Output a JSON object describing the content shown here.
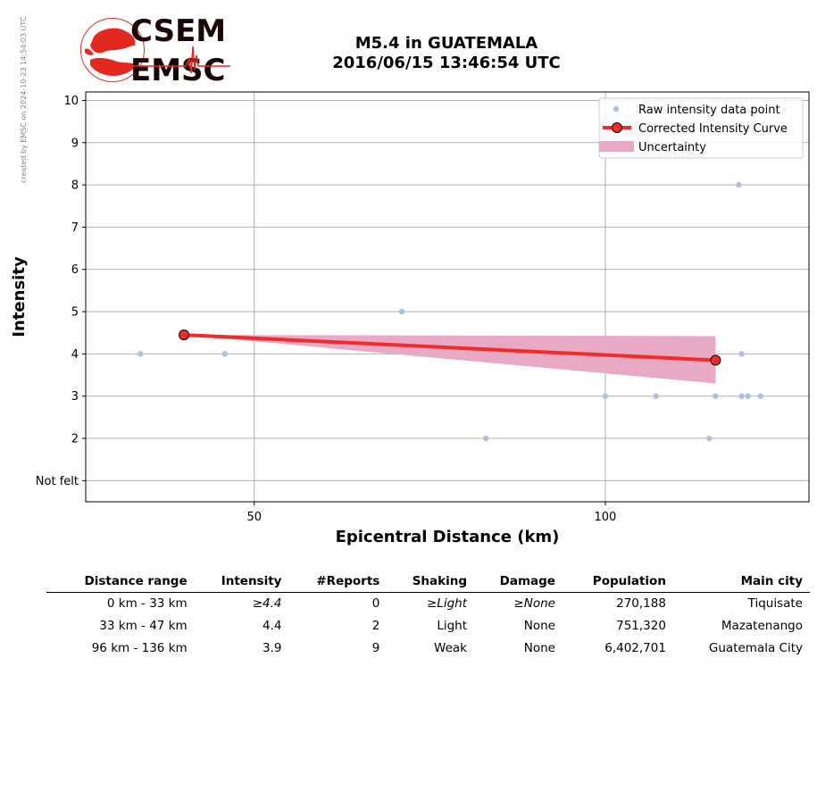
{
  "side_note": "created by EMSC on 2024-10-23 14:54:03 UTC",
  "logo": {
    "top_text": "CSEM",
    "bottom_text": "EMSC",
    "colors": {
      "accent": "#d8322a",
      "text": "#1b0606"
    }
  },
  "title": {
    "line1": "M5.4 in GUATEMALA",
    "line2": "2016/06/15 13:46:54 UTC"
  },
  "chart_data": {
    "type": "scatter",
    "xlabel": "Epicentral Distance (km)",
    "ylabel": "Intensity",
    "xlim": [
      26,
      129
    ],
    "ylim": [
      0.5,
      10.2
    ],
    "x_ticks": [
      50,
      100
    ],
    "y_ticks": [
      {
        "value": 1,
        "label": "Not felt"
      },
      {
        "value": 2,
        "label": "2"
      },
      {
        "value": 3,
        "label": "3"
      },
      {
        "value": 4,
        "label": "4"
      },
      {
        "value": 5,
        "label": "5"
      },
      {
        "value": 6,
        "label": "6"
      },
      {
        "value": 7,
        "label": "7"
      },
      {
        "value": 8,
        "label": "8"
      },
      {
        "value": 9,
        "label": "9"
      },
      {
        "value": 10,
        "label": "10"
      }
    ],
    "grid": true,
    "legend": {
      "placement": "top-right",
      "entries": [
        "Raw intensity data point",
        "Corrected Intensity Curve",
        "Uncertainty"
      ]
    },
    "series": [
      {
        "name": "Raw intensity data point",
        "kind": "points",
        "color": "#aebfe6",
        "points": [
          [
            33.8,
            4
          ],
          [
            45.8,
            4
          ],
          [
            71,
            5
          ],
          [
            83,
            2
          ],
          [
            100,
            3
          ],
          [
            107.2,
            3
          ],
          [
            114.8,
            2
          ],
          [
            115.7,
            3
          ],
          [
            119,
            8
          ],
          [
            119.4,
            4
          ],
          [
            119.4,
            3
          ],
          [
            120.3,
            3
          ],
          [
            122.1,
            3
          ]
        ]
      },
      {
        "name": "Corrected Intensity Curve",
        "kind": "line",
        "color": "#f42a2a",
        "points": [
          [
            40,
            4.45
          ],
          [
            115.7,
            3.85
          ]
        ]
      },
      {
        "name": "Uncertainty",
        "kind": "band",
        "color": "#e8a9c4",
        "x": [
          40,
          115.7
        ],
        "lower": [
          4.45,
          3.3
        ],
        "upper": [
          4.45,
          4.42
        ]
      }
    ]
  },
  "table": {
    "headers": [
      "Distance range",
      "Intensity",
      "#Reports",
      "Shaking",
      "Damage",
      "Population",
      "Main city"
    ],
    "rows": [
      [
        "0 km -   33 km",
        "≥4.4",
        "0",
        "≥Light",
        "≥None",
        "270,188",
        "Tiquisate"
      ],
      [
        "33 km -   47 km",
        "4.4",
        "2",
        "Light",
        "None",
        "751,320",
        "Mazatenango"
      ],
      [
        "96 km -  136 km",
        "3.9",
        "9",
        "Weak",
        "None",
        "6,402,701",
        "Guatemala City"
      ]
    ]
  }
}
